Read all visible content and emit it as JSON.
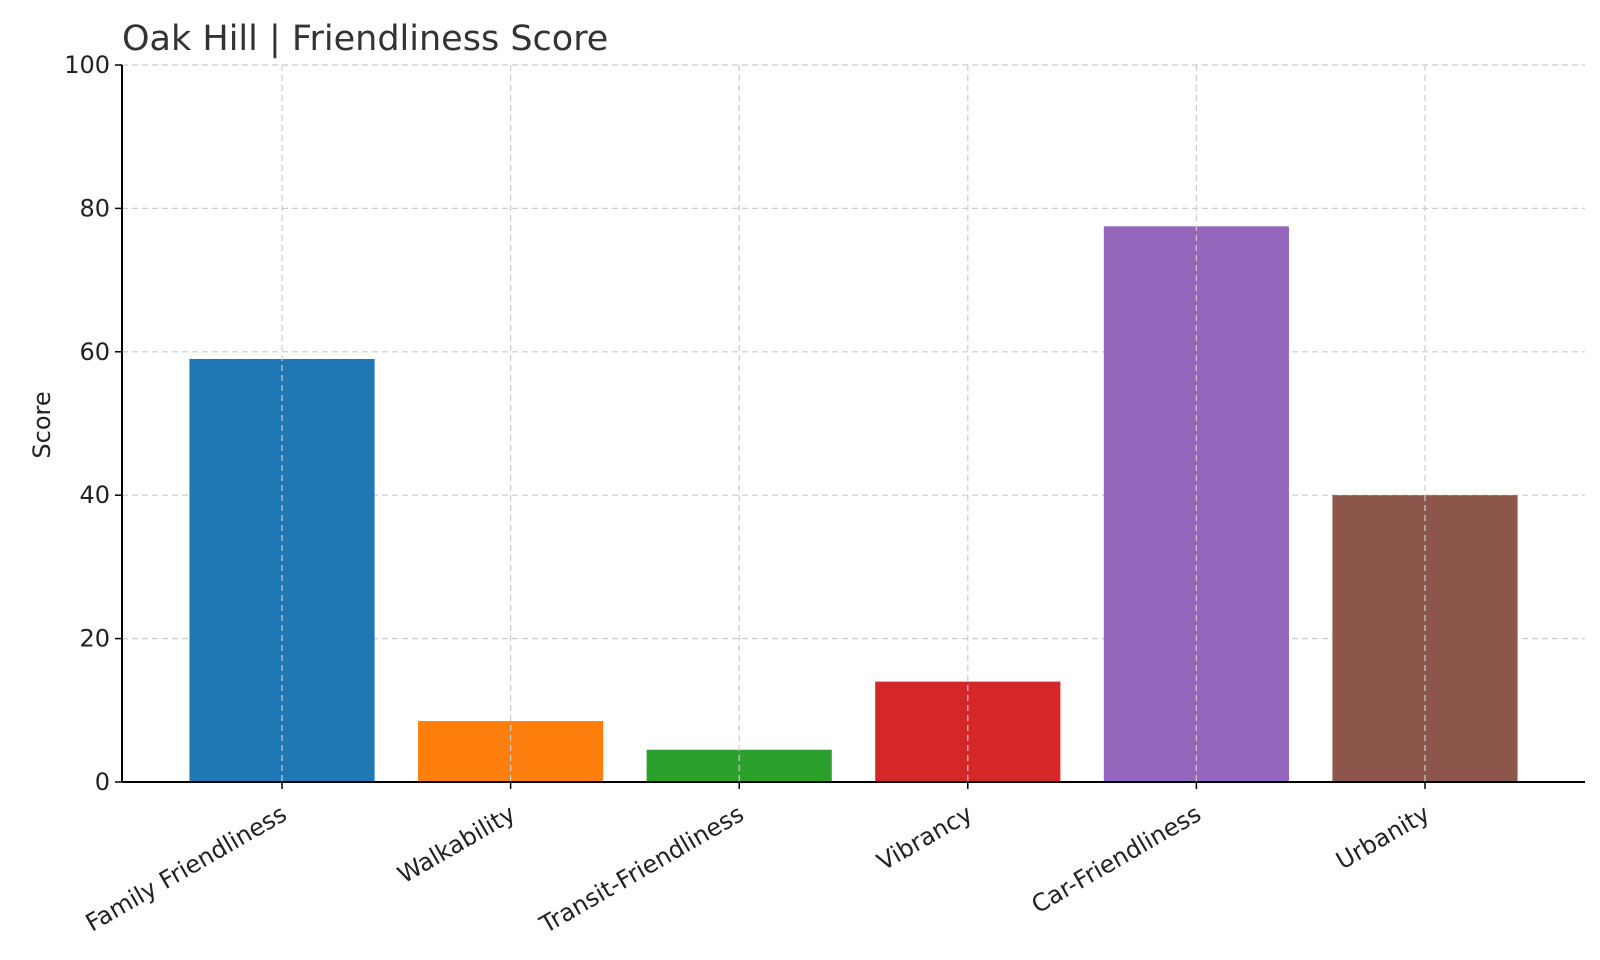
{
  "chart_data": {
    "type": "bar",
    "title": "Oak Hill |  Friendliness Score",
    "xlabel": "",
    "ylabel": "Score",
    "ylim": [
      0,
      100
    ],
    "yticks": [
      "0",
      "20",
      "40",
      "60",
      "80",
      "100"
    ],
    "categories": [
      "Family Friendliness",
      "Walkability",
      "Transit-Friendliness",
      "Vibrancy",
      "Car-Friendliness",
      "Urbanity"
    ],
    "values": [
      59,
      8.5,
      4.5,
      14,
      77.5,
      40
    ],
    "colors": [
      "#1f77b4",
      "#ff7f0e",
      "#2ca02c",
      "#d62728",
      "#9467bd",
      "#8c564b"
    ],
    "grid": true,
    "legend": "none"
  }
}
